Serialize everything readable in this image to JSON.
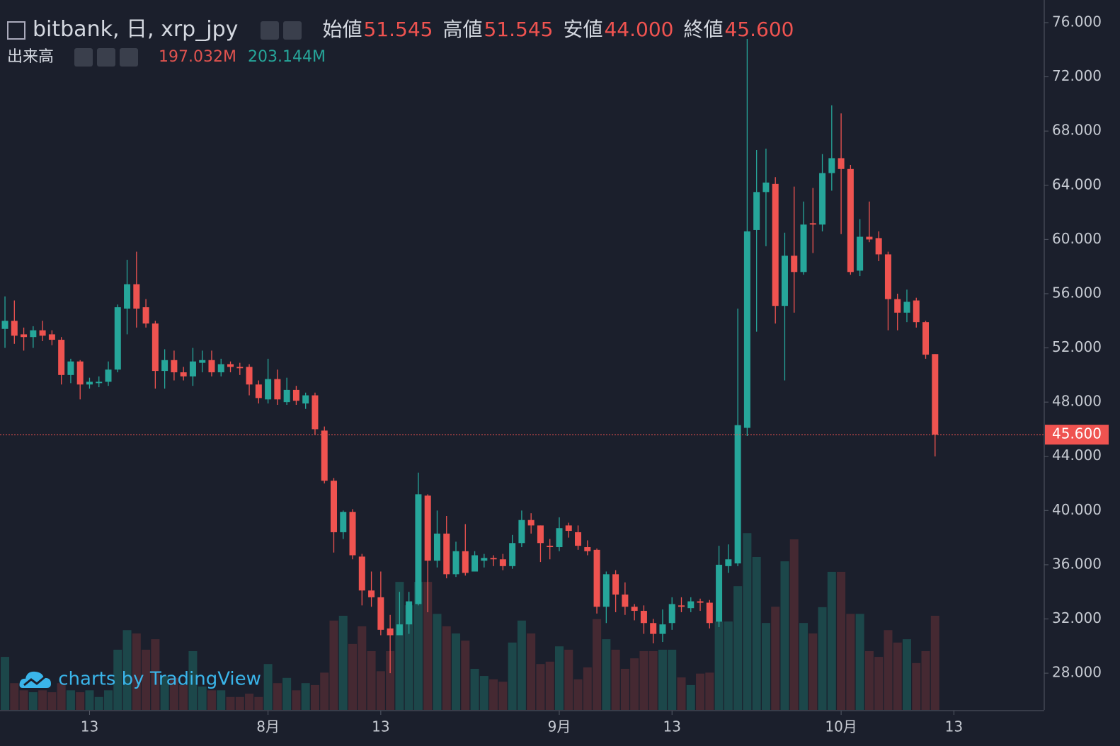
{
  "chart_data": {
    "type": "candlestick",
    "title": "bitbank, 日, xrp_jpy",
    "ohlc_legend": [
      {
        "name": "始値",
        "value": 51.545,
        "label": "51.545"
      },
      {
        "name": "高値",
        "value": 51.545,
        "label": "51.545"
      },
      {
        "name": "安値",
        "value": 44.0,
        "label": "44.000"
      },
      {
        "name": "終値",
        "value": 45.6,
        "label": "45.600"
      }
    ],
    "volume_title": "出来高",
    "volume_legend": [
      {
        "value": 197.032,
        "label": "197.032M",
        "color": "#e0534f"
      },
      {
        "value": 203.144,
        "label": "203.144M",
        "color": "#26a69a"
      }
    ],
    "last_price": {
      "value": 45.6,
      "label": "45.600"
    },
    "watermark": "charts by TradingView",
    "up_color": "#26a69a",
    "down_color": "#ef5350",
    "up_volume_color": "#1d4b4e",
    "down_volume_color": "#4a2a33",
    "xlim": [
      -0.53,
      110.62
    ],
    "xticks": [
      {
        "value": 9,
        "label": "13"
      },
      {
        "value": 28,
        "label": "8月"
      },
      {
        "value": 40,
        "label": "13"
      },
      {
        "value": 59,
        "label": "9月"
      },
      {
        "value": 71,
        "label": "13"
      },
      {
        "value": 89,
        "label": "10月"
      },
      {
        "value": 101,
        "label": "13"
      }
    ],
    "ylim": [
      25.29,
      77.67
    ],
    "yticks": [
      {
        "value": 28,
        "label": "28.000"
      },
      {
        "value": 32,
        "label": "32.000"
      },
      {
        "value": 36,
        "label": "36.000"
      },
      {
        "value": 40,
        "label": "40.000"
      },
      {
        "value": 44,
        "label": "44.000"
      },
      {
        "value": 48,
        "label": "48.000"
      },
      {
        "value": 52,
        "label": "52.000"
      },
      {
        "value": 56,
        "label": "56.000"
      },
      {
        "value": 60,
        "label": "60.000"
      },
      {
        "value": 64,
        "label": "64.000"
      },
      {
        "value": 68,
        "label": "68.000"
      },
      {
        "value": 72,
        "label": "72.000"
      },
      {
        "value": 76,
        "label": "76.000"
      }
    ],
    "open": [
      53.4,
      54.0,
      53.0,
      52.8,
      53.3,
      53.0,
      52.6,
      50.0,
      51.0,
      49.3,
      49.4,
      49.5,
      50.4,
      54.9,
      56.7,
      55.0,
      53.8,
      50.3,
      51.1,
      50.2,
      49.9,
      50.9,
      51.1,
      50.2,
      50.8,
      50.6,
      50.6,
      49.3,
      48.2,
      49.7,
      48.0,
      48.9,
      47.9,
      48.5,
      45.9,
      42.2,
      38.4,
      39.9,
      36.6,
      34.1,
      33.6,
      31.3,
      30.8,
      31.6,
      33.1,
      41.1,
      36.3,
      38.3,
      35.3,
      37.0,
      35.5,
      36.3,
      36.5,
      36.4,
      35.9,
      37.6,
      39.3,
      38.9,
      37.4,
      37.3,
      38.9,
      38.4,
      37.3,
      37.1,
      32.9,
      35.3,
      33.8,
      32.9,
      32.6,
      31.7,
      30.9,
      31.7,
      33.0,
      32.8,
      33.3,
      33.2,
      31.8,
      35.9,
      36.1,
      46.1,
      60.7,
      63.5,
      64.1,
      55.1,
      58.8,
      57.6,
      61.2,
      61.1,
      64.9,
      66.0,
      65.2,
      57.7,
      60.2,
      60.1,
      58.9,
      55.6,
      54.6,
      55.5,
      53.9,
      51.545
    ],
    "high": [
      55.8,
      55.5,
      53.5,
      53.6,
      54.0,
      53.3,
      52.8,
      51.2,
      51.1,
      49.8,
      49.9,
      51.0,
      55.2,
      58.5,
      59.1,
      55.6,
      54.0,
      51.9,
      51.8,
      50.6,
      52.0,
      51.8,
      51.8,
      51.2,
      51.0,
      50.9,
      50.8,
      49.6,
      51.2,
      50.4,
      49.8,
      49.2,
      48.7,
      48.7,
      46.2,
      42.4,
      40.0,
      40.1,
      36.8,
      35.5,
      35.5,
      32.3,
      34.0,
      34.0,
      42.8,
      41.2,
      40.0,
      39.6,
      37.7,
      39.0,
      37.0,
      36.8,
      36.7,
      36.8,
      38.2,
      40.0,
      39.8,
      38.9,
      37.9,
      39.5,
      39.1,
      38.9,
      37.8,
      37.2,
      35.5,
      35.6,
      34.7,
      33.1,
      33.0,
      32.0,
      32.7,
      33.6,
      33.6,
      33.6,
      33.5,
      33.4,
      37.4,
      37.5,
      54.9,
      74.8,
      66.6,
      66.7,
      64.6,
      60.5,
      63.9,
      62.8,
      63.8,
      66.3,
      69.9,
      69.3,
      65.5,
      61.5,
      62.8,
      60.6,
      59.1,
      56.0,
      56.3,
      55.7,
      54.0,
      51.545
    ],
    "low": [
      52.0,
      52.3,
      51.8,
      52.0,
      52.5,
      52.2,
      49.3,
      49.4,
      48.2,
      49.0,
      49.1,
      49.2,
      50.2,
      53.0,
      53.5,
      53.5,
      49.0,
      49.0,
      49.6,
      49.6,
      49.2,
      50.2,
      49.9,
      49.9,
      50.2,
      50.0,
      48.5,
      47.9,
      47.9,
      47.8,
      47.8,
      47.8,
      47.5,
      45.6,
      42.0,
      36.9,
      37.9,
      36.4,
      33.0,
      32.9,
      30.8,
      28.0,
      30.8,
      30.9,
      33.0,
      32.5,
      35.8,
      35.0,
      35.1,
      35.2,
      35.6,
      35.8,
      35.9,
      35.6,
      35.7,
      37.3,
      38.3,
      36.2,
      36.4,
      37.0,
      38.0,
      37.1,
      36.7,
      32.4,
      31.7,
      32.5,
      32.3,
      31.9,
      30.9,
      30.2,
      30.3,
      31.2,
      32.5,
      32.5,
      32.6,
      31.3,
      31.4,
      35.4,
      35.9,
      45.5,
      53.2,
      59.5,
      53.8,
      49.6,
      54.6,
      57.4,
      59.0,
      60.6,
      63.6,
      60.4,
      57.4,
      57.3,
      59.8,
      58.4,
      53.3,
      53.3,
      53.9,
      53.5,
      51.2,
      44.0
    ],
    "close": [
      54.0,
      52.9,
      52.8,
      53.3,
      52.9,
      52.6,
      50.0,
      51.0,
      49.3,
      49.5,
      49.5,
      50.4,
      55.0,
      56.7,
      54.9,
      53.8,
      50.3,
      51.1,
      50.2,
      49.9,
      51.0,
      51.1,
      50.2,
      50.8,
      50.6,
      50.5,
      49.3,
      48.3,
      49.7,
      48.2,
      48.9,
      48.1,
      48.5,
      46.0,
      42.2,
      38.4,
      39.9,
      36.7,
      34.1,
      33.6,
      31.2,
      30.8,
      31.6,
      33.3,
      41.2,
      36.3,
      38.3,
      35.3,
      37.0,
      35.4,
      36.7,
      36.5,
      36.4,
      35.9,
      37.6,
      39.3,
      38.9,
      37.6,
      37.3,
      38.7,
      38.5,
      37.4,
      37.0,
      32.9,
      35.3,
      33.8,
      32.9,
      32.6,
      31.7,
      30.9,
      31.6,
      33.1,
      32.9,
      33.3,
      33.2,
      31.7,
      36.0,
      36.4,
      46.3,
      60.6,
      63.5,
      64.2,
      55.1,
      58.8,
      57.6,
      61.1,
      61.1,
      64.9,
      66.0,
      65.2,
      57.6,
      60.2,
      60.0,
      58.9,
      55.6,
      54.6,
      55.4,
      53.9,
      51.5,
      45.6
    ],
    "volume": [
      111,
      56,
      41,
      37,
      41,
      37,
      56,
      41,
      37,
      41,
      27,
      41,
      126,
      167,
      160,
      126,
      148,
      71,
      67,
      52,
      123,
      49,
      41,
      41,
      27,
      27,
      34,
      27,
      96,
      56,
      67,
      41,
      56,
      52,
      78,
      187,
      197,
      138,
      175,
      123,
      81,
      123,
      268,
      219,
      268,
      268,
      201,
      175,
      160,
      145,
      86,
      71,
      64,
      59,
      141,
      187,
      160,
      96,
      101,
      133,
      126,
      64,
      89,
      190,
      148,
      126,
      86,
      108,
      123,
      123,
      126,
      126,
      68,
      52,
      76,
      78,
      185,
      185,
      259,
      370,
      320,
      182,
      216,
      311,
      357,
      182,
      160,
      215,
      289,
      289,
      201,
      201,
      123,
      111,
      167,
      141,
      148,
      98,
      123,
      197.032
    ]
  }
}
